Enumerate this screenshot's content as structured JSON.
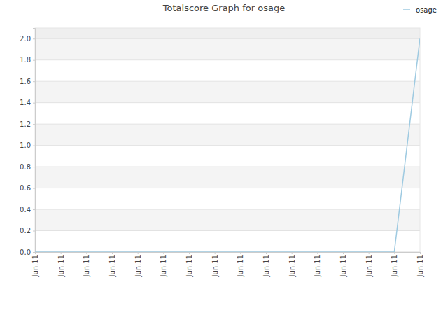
{
  "chart_data": {
    "type": "line",
    "title": "Totalscore Graph for osage",
    "categories": [
      "Jun.11",
      "Jun.11",
      "Jun.11",
      "Jun.11",
      "Jun.11",
      "Jun.11",
      "Jun.11",
      "Jun.11",
      "Jun.11",
      "Jun.11",
      "Jun.11",
      "Jun.11",
      "Jun.11",
      "Jun.11",
      "Jun.11",
      "Jun.11"
    ],
    "series": [
      {
        "name": "osage",
        "color": "#9ecae1",
        "values": [
          0,
          0,
          0,
          0,
          0,
          0,
          0,
          0,
          0,
          0,
          0,
          0,
          0,
          0,
          0,
          2
        ]
      }
    ],
    "ylim": [
      0,
      2.1
    ],
    "yticks": [
      {
        "value": 0,
        "label": "0.0"
      },
      0.2,
      0.4,
      0.6,
      0.8,
      {
        "value": 1,
        "label": "1.0"
      },
      1.2,
      1.4,
      1.6,
      1.8,
      {
        "value": 2,
        "label": "2.0"
      }
    ],
    "grid": true,
    "legend": "top-right"
  }
}
